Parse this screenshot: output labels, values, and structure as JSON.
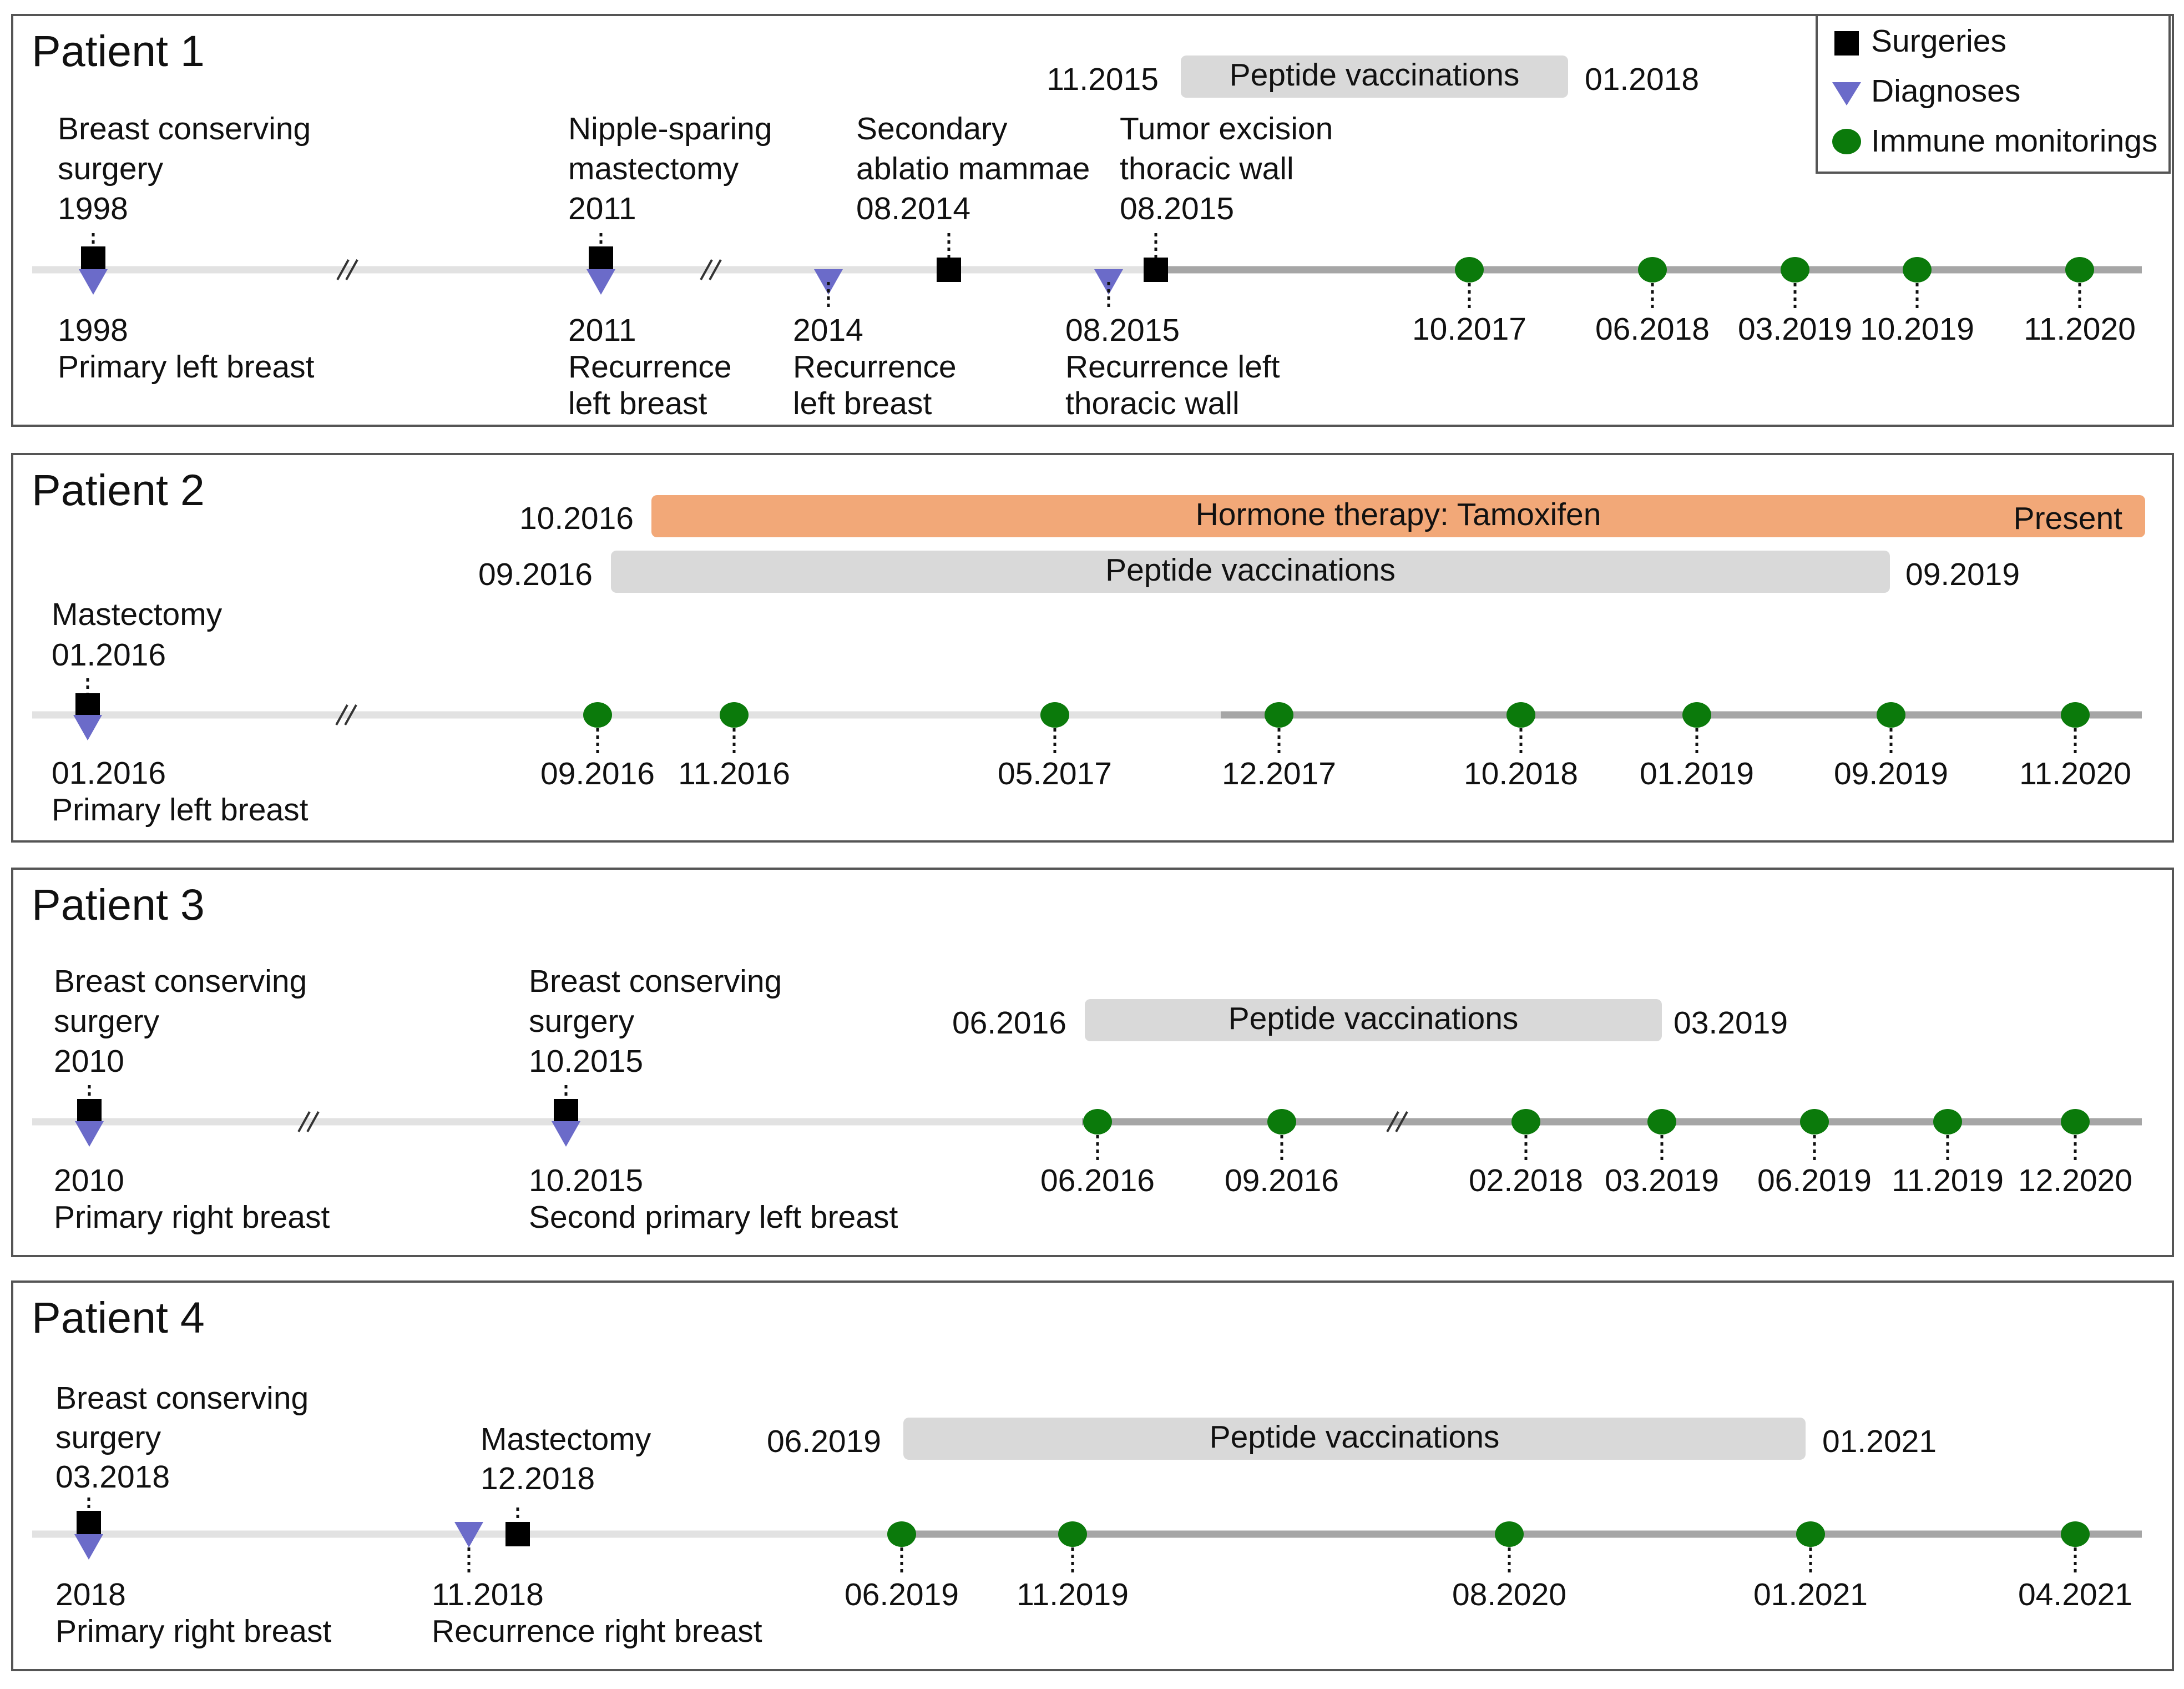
{
  "colors": {
    "surgery": "#000000",
    "diagnosis": "#6b6bc9",
    "monitoring": "#0b7a0b",
    "vaccination_bar": "#d9d9d9",
    "hormone_bar": "#f2a878",
    "axis_light": "#e2e2e2",
    "axis_dark": "#a6a6a6",
    "frame": "#555555"
  },
  "legend": {
    "surgeries": "Surgeries",
    "diagnoses": "Diagnoses",
    "monitorings": "Immune monitorings"
  },
  "patients": [
    {
      "title": "Patient 1",
      "bars": [
        {
          "label": "Peptide vaccinations",
          "start": "11.2015",
          "end": "01.2018"
        }
      ],
      "surgeries": [
        [
          "Breast conserving",
          "surgery",
          "1998"
        ],
        [
          "Nipple-sparing",
          "mastectomy",
          "2011"
        ],
        [
          "Secondary",
          "ablatio mammae",
          "08.2014"
        ],
        [
          "Tumor excision",
          "thoracic wall",
          "08.2015"
        ]
      ],
      "diagnoses": [
        [
          "1998",
          "Primary left breast"
        ],
        [
          "2011",
          "Recurrence",
          "left breast"
        ],
        [
          "2014",
          "Recurrence",
          "left breast"
        ],
        [
          "08.2015",
          "Recurrence left",
          "thoracic wall"
        ]
      ],
      "monitorings": [
        "10.2017",
        "06.2018",
        "03.2019",
        "10.2019",
        "11.2020"
      ]
    },
    {
      "title": "Patient 2",
      "bars": [
        {
          "label": "Hormone therapy: Tamoxifen",
          "start": "10.2016",
          "end": "Present"
        },
        {
          "label": "Peptide vaccinations",
          "start": "09.2016",
          "end": "09.2019"
        }
      ],
      "surgeries": [
        [
          "Mastectomy",
          "01.2016"
        ]
      ],
      "diagnoses": [
        [
          "01.2016",
          "Primary left breast"
        ]
      ],
      "monitorings": [
        "09.2016",
        "11.2016",
        "05.2017",
        "12.2017",
        "10.2018",
        "01.2019",
        "09.2019",
        "11.2020"
      ]
    },
    {
      "title": "Patient 3",
      "bars": [
        {
          "label": "Peptide vaccinations",
          "start": "06.2016",
          "end": "03.2019"
        }
      ],
      "surgeries": [
        [
          "Breast conserving",
          "surgery",
          "2010"
        ],
        [
          "Breast conserving",
          "surgery",
          "10.2015"
        ]
      ],
      "diagnoses": [
        [
          "2010",
          "Primary right breast"
        ],
        [
          "10.2015",
          "Second primary left breast"
        ]
      ],
      "monitorings": [
        "06.2016",
        "09.2016",
        "02.2018",
        "03.2019",
        "06.2019",
        "11.2019",
        "12.2020"
      ]
    },
    {
      "title": "Patient 4",
      "bars": [
        {
          "label": "Peptide vaccinations",
          "start": "06.2019",
          "end": "01.2021"
        }
      ],
      "surgeries": [
        [
          "Breast conserving",
          "surgery",
          "03.2018"
        ],
        [
          "Mastectomy",
          "12.2018"
        ]
      ],
      "diagnoses": [
        [
          "2018",
          "Primary right breast"
        ],
        [
          "11.2018",
          "Recurrence right breast"
        ]
      ],
      "monitorings": [
        "06.2019",
        "11.2019",
        "08.2020",
        "01.2021",
        "04.2021"
      ]
    }
  ]
}
